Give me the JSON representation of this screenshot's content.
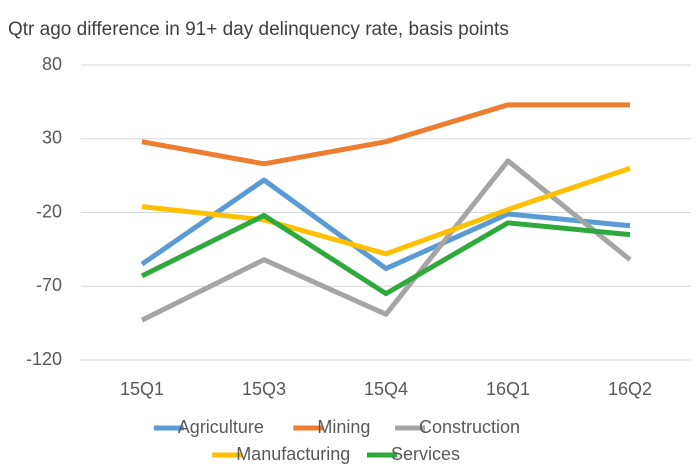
{
  "chart_data": {
    "type": "line",
    "title": "Qtr ago difference in 91+ day delinquency rate, basis points",
    "categories": [
      "15Q1",
      "15Q3",
      "15Q4",
      "16Q1",
      "16Q2"
    ],
    "series": [
      {
        "name": "Agriculture",
        "color": "#5b9bd5",
        "values": [
          -55,
          2,
          -58,
          -21,
          -29
        ]
      },
      {
        "name": "Mining",
        "color": "#ed7d31",
        "values": [
          28,
          13,
          28,
          53,
          53
        ]
      },
      {
        "name": "Construction",
        "color": "#a5a5a5",
        "values": [
          -93,
          -52,
          -89,
          15,
          -52
        ]
      },
      {
        "name": "Manufacturing",
        "color": "#ffc000",
        "values": [
          -16,
          -25,
          -48,
          -18,
          10
        ]
      },
      {
        "name": "Services",
        "color": "#2eaa3c",
        "values": [
          -63,
          -22,
          -75,
          -27,
          -35
        ]
      }
    ],
    "ylim": [
      -120,
      80
    ],
    "yticks": [
      -120,
      -70,
      -20,
      30,
      80
    ],
    "grid": true
  }
}
